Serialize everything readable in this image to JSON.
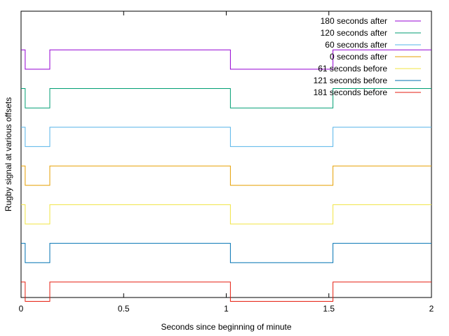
{
  "chart_data": {
    "type": "line",
    "title": "",
    "xlabel": "Seconds since beginning of minute",
    "ylabel": "Rugby signal at various offsets",
    "xlim": [
      0,
      2
    ],
    "ylim": [
      0,
      7.4
    ],
    "x_ticks": [
      0,
      0.5,
      1,
      1.5,
      2
    ],
    "x_tick_labels": [
      "0",
      "0.5",
      "1",
      "1.5",
      "2"
    ],
    "grid": false,
    "legend_position": "top-right",
    "series": [
      {
        "name": "180 seconds after",
        "color": "#9400d3",
        "x": [
          0,
          0.02,
          0.02,
          0.14,
          0.14,
          1.02,
          1.02,
          1.52,
          1.52,
          2
        ],
        "y": [
          6.4,
          6.4,
          5.9,
          5.9,
          6.4,
          6.4,
          5.9,
          5.9,
          6.4,
          6.4
        ]
      },
      {
        "name": "120 seconds after",
        "color": "#009e73",
        "x": [
          0,
          0.02,
          0.02,
          0.14,
          0.14,
          1.02,
          1.02,
          1.52,
          1.52,
          2
        ],
        "y": [
          5.4,
          5.4,
          4.9,
          4.9,
          5.4,
          5.4,
          4.9,
          4.9,
          5.4,
          5.4
        ]
      },
      {
        "name": "60 seconds after",
        "color": "#56b4e9",
        "x": [
          0,
          0.02,
          0.02,
          0.14,
          0.14,
          1.02,
          1.02,
          1.52,
          1.52,
          2
        ],
        "y": [
          4.4,
          4.4,
          3.9,
          3.9,
          4.4,
          4.4,
          3.9,
          3.9,
          4.4,
          4.4
        ]
      },
      {
        "name": "0 seconds after",
        "color": "#e69f00",
        "x": [
          0,
          0.02,
          0.02,
          0.14,
          0.14,
          1.02,
          1.02,
          1.52,
          1.52,
          2
        ],
        "y": [
          3.4,
          3.4,
          2.9,
          2.9,
          3.4,
          3.4,
          2.9,
          2.9,
          3.4,
          3.4
        ]
      },
      {
        "name": "61 seconds before",
        "color": "#f0e442",
        "x": [
          0,
          0.02,
          0.02,
          0.14,
          0.14,
          1.02,
          1.02,
          1.52,
          1.52,
          2
        ],
        "y": [
          2.4,
          2.4,
          1.9,
          1.9,
          2.4,
          2.4,
          1.9,
          1.9,
          2.4,
          2.4
        ]
      },
      {
        "name": "121 seconds before",
        "color": "#0072b2",
        "x": [
          0,
          0.02,
          0.02,
          0.14,
          0.14,
          1.02,
          1.02,
          1.52,
          1.52,
          2
        ],
        "y": [
          1.4,
          1.4,
          0.9,
          0.9,
          1.4,
          1.4,
          0.9,
          0.9,
          1.4,
          1.4
        ]
      },
      {
        "name": "181 seconds before",
        "color": "#e51e10",
        "x": [
          0,
          0.02,
          0.02,
          0.14,
          0.14,
          1.02,
          1.02,
          1.52,
          1.52,
          2
        ],
        "y": [
          0.4,
          0.4,
          -0.1,
          -0.1,
          0.4,
          0.4,
          -0.1,
          -0.1,
          0.4,
          0.4
        ]
      }
    ]
  }
}
